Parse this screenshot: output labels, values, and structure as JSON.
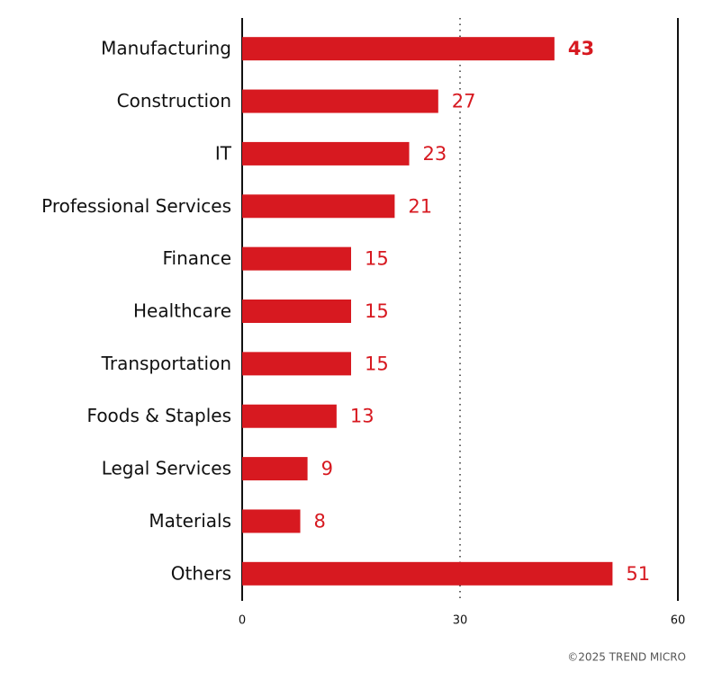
{
  "chart_data": {
    "type": "bar",
    "orientation": "horizontal",
    "categories": [
      "Manufacturing",
      "Construction",
      "IT",
      "Professional Services",
      "Finance",
      "Healthcare",
      "Transportation",
      "Foods & Staples",
      "Legal Services",
      "Materials",
      "Others"
    ],
    "values": [
      43,
      27,
      23,
      21,
      15,
      15,
      15,
      13,
      9,
      8,
      51
    ],
    "color": "#d71920",
    "xlim": [
      0,
      60
    ],
    "xticks": [
      0,
      30,
      60
    ],
    "grid": true,
    "credit": "©2025 TREND MICRO"
  }
}
